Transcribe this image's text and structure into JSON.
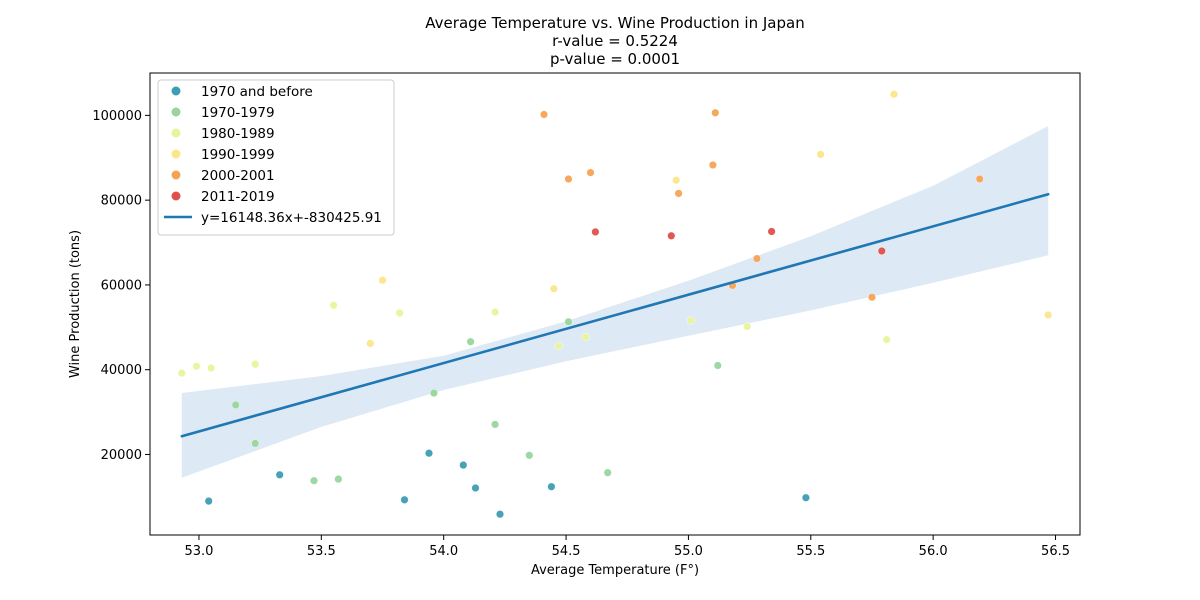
{
  "chart_data": {
    "type": "scatter",
    "title": "Average Temperature vs. Wine Production in Japan",
    "subtitle_lines": [
      "r-value = 0.5224",
      "p-value = 0.0001"
    ],
    "xlabel": "Average Temperature (F°)",
    "ylabel": "Wine Production (tons)",
    "xlim": [
      52.8,
      56.6
    ],
    "ylim": [
      1000,
      110000
    ],
    "x_ticks": [
      53.0,
      53.5,
      54.0,
      54.5,
      55.0,
      55.5,
      56.0,
      56.5
    ],
    "x_tick_labels": [
      "53.0",
      "53.5",
      "54.0",
      "54.5",
      "55.0",
      "55.5",
      "56.0",
      "56.5"
    ],
    "y_ticks": [
      20000,
      40000,
      60000,
      80000,
      100000
    ],
    "y_tick_labels": [
      "20000",
      "40000",
      "60000",
      "80000",
      "100000"
    ],
    "grid": false,
    "legend_position": "top-left",
    "series": [
      {
        "name": "1970 and before",
        "color": "#3d9db3",
        "x": [
          53.04,
          53.33,
          53.84,
          53.94,
          54.08,
          54.13,
          54.23,
          54.44,
          55.48
        ],
        "y": [
          9000,
          15200,
          9300,
          20300,
          17500,
          12100,
          5900,
          12400,
          9800
        ]
      },
      {
        "name": "1970-1979",
        "color": "#98d59c",
        "x": [
          53.15,
          53.23,
          53.47,
          53.57,
          53.96,
          54.11,
          54.21,
          54.35,
          54.51,
          54.67,
          55.12
        ],
        "y": [
          31700,
          22600,
          13800,
          14200,
          34500,
          46600,
          27100,
          19800,
          51300,
          15700,
          41000
        ]
      },
      {
        "name": "1980-1989",
        "color": "#e8f49c",
        "x": [
          52.93,
          52.99,
          53.05,
          53.23,
          53.55,
          53.82,
          54.21,
          54.47,
          54.58,
          55.01,
          55.24,
          55.81
        ],
        "y": [
          39200,
          40800,
          40400,
          41300,
          55200,
          53400,
          53600,
          45600,
          47700,
          51600,
          50200,
          47100
        ]
      },
      {
        "name": "1990-1999",
        "color": "#fde58a",
        "x": [
          53.7,
          53.75,
          54.45,
          54.95,
          55.54,
          55.84,
          56.47
        ],
        "y": [
          46200,
          61100,
          59100,
          84700,
          90800,
          105000,
          52900
        ]
      },
      {
        "name": "2000-2001",
        "color": "#f5a354",
        "x": [
          54.41,
          54.51,
          54.6,
          54.96,
          55.1,
          55.11,
          55.18,
          55.28,
          55.75,
          56.19
        ],
        "y": [
          100200,
          85000,
          86500,
          81600,
          88300,
          100600,
          59900,
          66200,
          57100,
          85000
        ]
      },
      {
        "name": "2011-2019",
        "color": "#e0504a",
        "x": [
          54.62,
          54.93,
          55.34,
          55.79
        ],
        "y": [
          72500,
          71600,
          72600,
          68000
        ]
      }
    ],
    "regression": {
      "name": "y=16148.36x+-830425.91",
      "color": "#1f77b4",
      "x": [
        52.93,
        56.47
      ],
      "y": [
        24300,
        81400
      ]
    },
    "confidence_band": {
      "color": "#c6dbef",
      "x": [
        52.93,
        53.5,
        54.0,
        54.5,
        55.0,
        55.5,
        56.0,
        56.47
      ],
      "upper": [
        34500,
        38500,
        43300,
        51400,
        61000,
        71500,
        83400,
        97500
      ],
      "lower": [
        14500,
        26500,
        35200,
        42000,
        48000,
        54000,
        60500,
        67000
      ]
    }
  }
}
